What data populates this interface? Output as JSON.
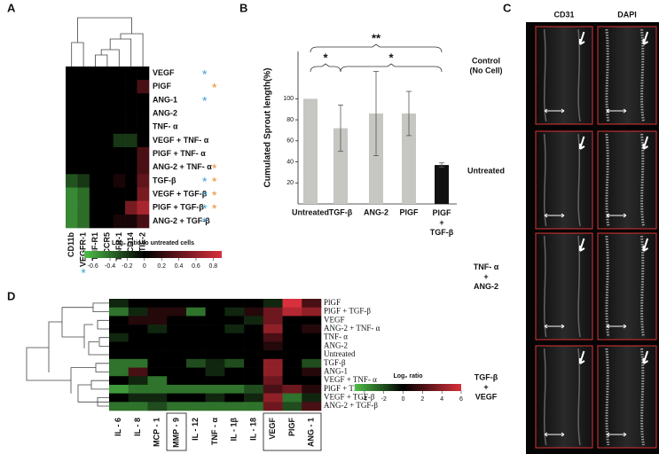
{
  "chart_data": [
    {
      "type": "heatmap",
      "label": "A",
      "columns": [
        "CD11b",
        "VEGFR-1",
        "TNF-R1",
        "CCR5",
        "TGFR-1",
        "CD14",
        "TIE-2"
      ],
      "rows": [
        "VEGF",
        "PlGF",
        "ANG-1",
        "ANG-2",
        "TNF- α",
        "VEGF + TNF- α",
        "PlGF + TNF- α",
        "ANG-2 + TNF- α",
        "TGF-β",
        "VEGF + TGF-β",
        "PlGF + TGF-β",
        "ANG-2 + TGF-β"
      ],
      "values": [
        [
          0,
          0,
          0,
          0,
          0,
          0,
          0
        ],
        [
          0,
          0,
          0,
          0,
          0,
          0,
          0.3
        ],
        [
          0,
          0,
          0,
          0,
          0,
          0,
          0
        ],
        [
          0,
          0,
          0,
          0,
          0,
          0,
          0
        ],
        [
          0,
          0,
          0,
          0,
          0,
          0,
          0
        ],
        [
          0,
          0,
          0,
          0,
          -0.2,
          -0.2,
          0
        ],
        [
          0,
          0,
          0,
          0,
          0,
          0,
          0.3
        ],
        [
          0,
          0,
          0,
          0,
          0,
          0,
          0.3
        ],
        [
          -0.3,
          -0.2,
          0,
          0,
          0.1,
          0,
          0.4
        ],
        [
          -0.5,
          -0.4,
          0,
          0,
          0,
          0,
          0.5
        ],
        [
          -0.5,
          -0.4,
          0,
          0,
          0,
          0.5,
          0.7
        ],
        [
          -0.5,
          -0.4,
          0,
          0,
          0.1,
          0.1,
          0.3
        ]
      ],
      "colormap": {
        "low": "#4fbf4a",
        "mid": "#000000",
        "high": "#d8303c"
      },
      "zlim": [
        -0.7,
        0.9
      ],
      "colorbar_label": "Log₂ ratio to untreated cells",
      "colorbar_ticks": [
        -0.6,
        -0.4,
        -0.2,
        0,
        0.2,
        0.4,
        0.6,
        0.8
      ],
      "marker": "*",
      "row_markers": [
        [
          "#3a9fd8"
        ],
        [
          "#f08a2c"
        ],
        [
          "#3a9fd8"
        ],
        [],
        [],
        [],
        [],
        [
          "#f08a2c"
        ],
        [
          "#3a9fd8",
          "#f08a2c"
        ],
        [
          "#3a9fd8",
          "#f08a2c"
        ],
        [
          "#3a9fd8",
          "#f08a2c"
        ],
        [
          "#3a9fd8"
        ]
      ],
      "column_markers": [
        [],
        [
          "#3a9fd8"
        ],
        [],
        [],
        [],
        [],
        [
          "#f08a2c"
        ]
      ]
    },
    {
      "type": "bar",
      "label": "B",
      "ylabel": "Cumulated Sprout length(%)",
      "categories": [
        "Untreated",
        "TGF-β",
        "ANG-2",
        "PlGF",
        "PlGF\n+\nTGF-β"
      ],
      "values": [
        100,
        72,
        86,
        86,
        37
      ],
      "error": [
        null,
        22,
        40,
        21,
        2
      ],
      "colors": [
        "#c6c6c2",
        "#c6c6c2",
        "#c6c6c2",
        "#c6c6c2",
        "#111111"
      ],
      "ylim": [
        0,
        145
      ],
      "yticks": [
        20,
        40,
        60,
        80,
        100
      ],
      "significance": [
        {
          "from": 0,
          "to": 1,
          "text": "*"
        },
        {
          "from": 0,
          "to": 4,
          "text": "**"
        },
        {
          "from": 1,
          "to": 4,
          "text": "*"
        }
      ]
    },
    {
      "type": "heatmap",
      "label": "D",
      "columns": [
        "IL - 6",
        "IL - 8",
        "MCP - 1",
        "MMP - 9",
        "IL - 12",
        "TNF - α",
        "IL - 1β",
        "IL - 18",
        "VEGF",
        "PlGF",
        "ANG - 1"
      ],
      "rows": [
        "PlGF",
        "PlGF + TGF-β",
        "VEGF",
        "ANG-2 + TNF- α",
        "TNF- α",
        "ANG-2",
        "Untreated",
        "TGF-β",
        "ANG-1",
        "VEGF + TNF- α",
        "PlGF + TNF- α",
        "VEGF + TGF-β",
        "ANG-2 + TGF-β"
      ],
      "values": [
        [
          -1,
          0,
          0,
          0,
          0,
          0,
          0,
          0,
          -1,
          6,
          2
        ],
        [
          -3,
          -1,
          1,
          1,
          -3,
          0,
          -1,
          1,
          3,
          5,
          4
        ],
        [
          0,
          1,
          1,
          0,
          0,
          0,
          0,
          -1,
          3,
          0,
          0
        ],
        [
          0,
          0,
          -1,
          0,
          0,
          0,
          -1,
          0,
          4,
          0,
          1
        ],
        [
          -1,
          0,
          0,
          0,
          0,
          0,
          0,
          0,
          2,
          0,
          0
        ],
        [
          0,
          0,
          0,
          0,
          0,
          0,
          0,
          0,
          1,
          0,
          0
        ],
        [
          0,
          0,
          0,
          0,
          0,
          0,
          0,
          0,
          0,
          0,
          0
        ],
        [
          -3,
          -3,
          0,
          0,
          -2,
          -1,
          -2,
          0,
          4,
          0,
          -2
        ],
        [
          -3,
          2,
          0,
          0,
          0,
          -1,
          0,
          0,
          4,
          0,
          1
        ],
        [
          0,
          -1,
          -3,
          0,
          0,
          0,
          0,
          0,
          3,
          0,
          0
        ],
        [
          -4,
          -3,
          -3,
          -3,
          -3,
          -3,
          -3,
          -2,
          2,
          3,
          1
        ],
        [
          0,
          -1,
          -1,
          0,
          0,
          -1,
          0,
          -1,
          4,
          -3,
          -1
        ],
        [
          -3,
          -3,
          -2,
          -3,
          -3,
          -3,
          -3,
          -3,
          3,
          -2,
          2
        ]
      ],
      "colormap": {
        "low": "#4fbf4a",
        "mid": "#000000",
        "high": "#d8303c"
      },
      "zlim": [
        -5,
        6
      ],
      "colorbar_label": "Log₂ ratio",
      "colorbar_ticks": [
        -4,
        -2,
        0,
        2,
        4,
        6
      ]
    }
  ],
  "image_panel": {
    "label": "C",
    "columns": [
      "CD31",
      "DAPI"
    ],
    "rows": [
      "Control\n(No Cell)",
      "Untreated",
      "TNF- α\n+\nANG-2",
      "TGF-β\n+\nVEGF"
    ]
  }
}
